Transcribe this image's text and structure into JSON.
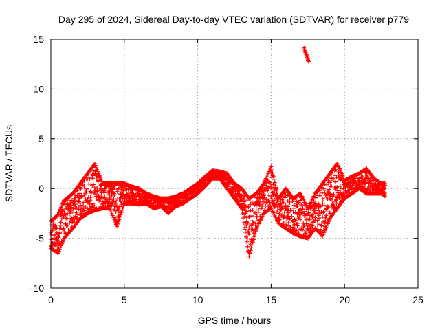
{
  "chart_data": {
    "type": "scatter",
    "title": "Day 295 of 2024, Sidereal Day-to-day VTEC variation (SDTVAR) for receiver p779",
    "xlabel": "GPS time / hours",
    "ylabel": "SDTVAR / TECUs",
    "xlim": [
      0,
      25
    ],
    "ylim": [
      -10,
      15
    ],
    "xticks": [
      0,
      5,
      10,
      15,
      20,
      25
    ],
    "yticks": [
      -10,
      -5,
      0,
      5,
      10,
      15
    ],
    "grid": true,
    "marker": "+",
    "color": "#ff0000",
    "series": [
      {
        "name": "SDTVAR",
        "approx_envelope": [
          {
            "x": 0.0,
            "lo": -6.0,
            "hi": -3.3
          },
          {
            "x": 0.5,
            "lo": -6.5,
            "hi": -2.6
          },
          {
            "x": 0.9,
            "lo": -5.0,
            "hi": -1.2
          },
          {
            "x": 1.5,
            "lo": -4.0,
            "hi": -0.5
          },
          {
            "x": 2.0,
            "lo": -3.0,
            "hi": 0.5
          },
          {
            "x": 2.5,
            "lo": -2.5,
            "hi": 1.5
          },
          {
            "x": 3.0,
            "lo": -2.2,
            "hi": 2.5
          },
          {
            "x": 3.5,
            "lo": -2.0,
            "hi": 0.5
          },
          {
            "x": 4.0,
            "lo": -2.0,
            "hi": 0.5
          },
          {
            "x": 4.5,
            "lo": -3.8,
            "hi": 0.5
          },
          {
            "x": 5.0,
            "lo": -1.5,
            "hi": 0.5
          },
          {
            "x": 5.5,
            "lo": -1.5,
            "hi": 0.2
          },
          {
            "x": 6.0,
            "lo": -1.6,
            "hi": 0.0
          },
          {
            "x": 6.5,
            "lo": -1.5,
            "hi": -0.5
          },
          {
            "x": 7.0,
            "lo": -2.0,
            "hi": -0.8
          },
          {
            "x": 7.5,
            "lo": -1.8,
            "hi": -1.0
          },
          {
            "x": 8.0,
            "lo": -2.5,
            "hi": -1.0
          },
          {
            "x": 8.5,
            "lo": -1.8,
            "hi": -0.8
          },
          {
            "x": 9.0,
            "lo": -1.5,
            "hi": -0.5
          },
          {
            "x": 9.5,
            "lo": -1.0,
            "hi": 0.0
          },
          {
            "x": 10.0,
            "lo": -0.5,
            "hi": 0.5
          },
          {
            "x": 10.5,
            "lo": 0.2,
            "hi": 1.2
          },
          {
            "x": 11.0,
            "lo": 1.0,
            "hi": 1.8
          },
          {
            "x": 11.5,
            "lo": 1.0,
            "hi": 1.7
          },
          {
            "x": 12.0,
            "lo": 0.0,
            "hi": 1.5
          },
          {
            "x": 12.5,
            "lo": -1.0,
            "hi": 0.5
          },
          {
            "x": 13.0,
            "lo": -2.0,
            "hi": 0.0
          },
          {
            "x": 13.5,
            "lo": -6.8,
            "hi": -1.0
          },
          {
            "x": 14.0,
            "lo": -4.0,
            "hi": -0.5
          },
          {
            "x": 14.5,
            "lo": -2.5,
            "hi": 0.5
          },
          {
            "x": 15.0,
            "lo": -2.0,
            "hi": 2.2
          },
          {
            "x": 15.5,
            "lo": -3.5,
            "hi": -1.0
          },
          {
            "x": 16.0,
            "lo": -4.0,
            "hi": 0.0
          },
          {
            "x": 16.5,
            "lo": -4.5,
            "hi": -1.0
          },
          {
            "x": 17.0,
            "lo": -4.8,
            "hi": -0.5
          },
          {
            "x": 17.5,
            "lo": -5.0,
            "hi": -2.0
          },
          {
            "x": 18.0,
            "lo": -4.0,
            "hi": -0.5
          },
          {
            "x": 18.5,
            "lo": -4.8,
            "hi": 0.5
          },
          {
            "x": 19.0,
            "lo": -3.0,
            "hi": 1.5
          },
          {
            "x": 19.5,
            "lo": -2.0,
            "hi": 2.5
          },
          {
            "x": 20.0,
            "lo": -1.0,
            "hi": 0.8
          },
          {
            "x": 20.5,
            "lo": -0.5,
            "hi": 1.2
          },
          {
            "x": 21.0,
            "lo": 0.0,
            "hi": 1.5
          },
          {
            "x": 21.5,
            "lo": -0.5,
            "hi": 2.0
          },
          {
            "x": 22.0,
            "lo": -0.5,
            "hi": 1.0
          },
          {
            "x": 22.5,
            "lo": -0.5,
            "hi": 0.5
          },
          {
            "x": 22.8,
            "lo": -0.8,
            "hi": 0.5
          }
        ],
        "outlier_segments": [
          {
            "x0": 17.25,
            "y0": 14.1,
            "x1": 17.55,
            "y1": 12.8
          }
        ]
      }
    ]
  }
}
